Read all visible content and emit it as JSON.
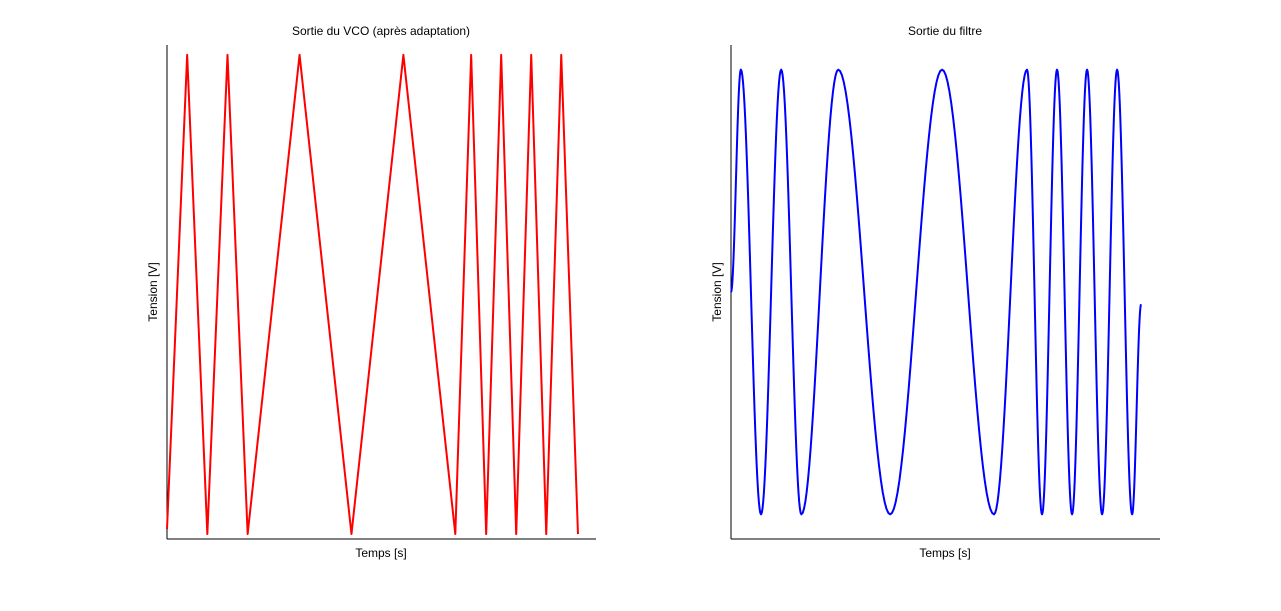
{
  "chart_data": [
    {
      "type": "line",
      "title": "Sortie du VCO (après adaptation)",
      "xlabel": "Temps [s]",
      "ylabel": "Tension [V]",
      "xlim": [
        0,
        1
      ],
      "ylim": [
        -1,
        1
      ],
      "grid": false,
      "color": "#ff0000",
      "waveform": "triangle",
      "series": [
        {
          "x": [
            0,
            0.047,
            0.094,
            0.141,
            0.188,
            0.309,
            0.43,
            0.551,
            0.672,
            0.709,
            0.744,
            0.779,
            0.814,
            0.849,
            0.884,
            0.919,
            0.958
          ],
          "values": [
            -0.96,
            0.96,
            -0.98,
            0.96,
            -0.98,
            0.96,
            -0.98,
            0.96,
            -0.98,
            0.96,
            -0.98,
            0.96,
            -0.98,
            0.96,
            -0.98,
            0.96,
            -0.98
          ]
        }
      ]
    },
    {
      "type": "line",
      "title": "Sortie du filtre",
      "xlabel": "Temps [s]",
      "ylabel": "Tension [V]",
      "xlim": [
        0,
        1
      ],
      "ylim": [
        -1,
        1
      ],
      "grid": false,
      "color": "#0000ff",
      "waveform": "sine",
      "series": [
        {
          "x": [
            0,
            0.023,
            0.07,
            0.117,
            0.164,
            0.25,
            0.371,
            0.492,
            0.613,
            0.69,
            0.725,
            0.76,
            0.795,
            0.83,
            0.865,
            0.9,
            0.935,
            0.956
          ],
          "values": [
            0.0,
            0.9,
            -0.9,
            0.9,
            -0.9,
            0.9,
            -0.9,
            0.9,
            -0.9,
            0.9,
            -0.9,
            0.9,
            -0.9,
            0.9,
            -0.9,
            0.9,
            -0.9,
            -0.05
          ]
        }
      ]
    }
  ]
}
